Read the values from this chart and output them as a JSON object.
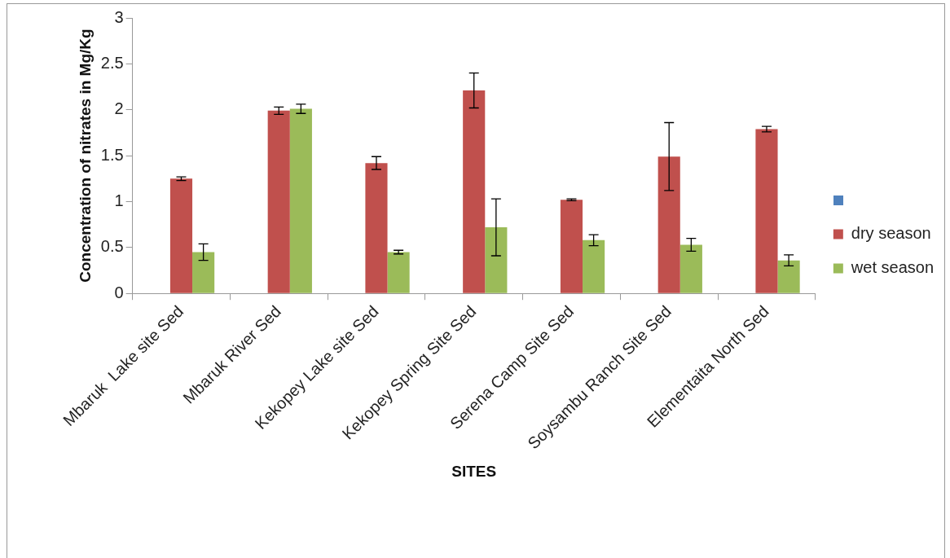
{
  "chart_data": {
    "type": "bar",
    "xlabel": "SITES",
    "ylabel": "Concentration of nitrates in Mg/Kg",
    "categories": [
      "Mbaruk  Lake site Sed",
      "Mbaruk River Sed",
      "Kekopey Lake site Sed",
      "Kekopey Spring Site Sed",
      "Serena Camp Site Sed",
      "Soysambu Ranch Site Sed",
      "Elementaita North Sed"
    ],
    "series": [
      {
        "color": "#4f81bd",
        "values": [
          null,
          null,
          null,
          null,
          null,
          null,
          null
        ]
      },
      {
        "name": "dry season",
        "color": "#c0504d",
        "values": [
          1.25,
          1.99,
          1.42,
          2.21,
          1.02,
          1.49,
          1.79
        ],
        "errors": [
          0.02,
          0.04,
          0.07,
          0.19,
          0.01,
          0.37,
          0.03
        ]
      },
      {
        "name": "wet season",
        "color": "#9bbb59",
        "values": [
          0.45,
          2.01,
          0.45,
          0.72,
          0.58,
          0.53,
          0.36
        ],
        "errors": [
          0.09,
          0.05,
          0.02,
          0.31,
          0.06,
          0.07,
          0.06
        ]
      }
    ],
    "ylim": [
      0,
      3
    ],
    "yticks": [
      0,
      0.5,
      1,
      1.5,
      2,
      2.5,
      3
    ],
    "grid": false,
    "legend": "right"
  }
}
